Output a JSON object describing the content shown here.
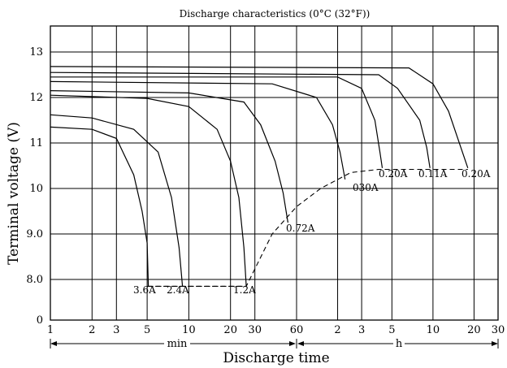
{
  "chart_data": {
    "type": "line",
    "title": "Discharge characteristics (0°C (32°F))",
    "xlabel": "Discharge time",
    "ylabel": "Terminal voltage (V)",
    "x_scale": "log (segmented: minutes 1–60, hours 1–30)",
    "x_segments": [
      {
        "label": "min",
        "start": 1,
        "end": 60,
        "ticks": [
          1,
          2,
          3,
          5,
          10,
          20,
          30,
          60
        ]
      },
      {
        "label": "h",
        "start": 1,
        "end": 30,
        "ticks": [
          2,
          3,
          5,
          10,
          20,
          30
        ]
      }
    ],
    "x_tick_labels": [
      "1",
      "2",
      "3",
      "5",
      "10",
      "20",
      "30",
      "60",
      "2",
      "3",
      "5",
      "10",
      "20",
      "30"
    ],
    "y_ticks": [
      0,
      8.0,
      9.0,
      10,
      11,
      12,
      13
    ],
    "y_tick_labels": [
      "0",
      "8.0",
      "9.0",
      "10",
      "11",
      "12",
      "13"
    ],
    "ylim": [
      7.0,
      13.6
    ],
    "y_break": "axis jumps from 0 to 8.0",
    "grid": true,
    "series": [
      {
        "name": "3.6A",
        "points": [
          [
            1,
            11.35
          ],
          [
            2,
            11.3
          ],
          [
            3,
            11.1
          ],
          [
            4,
            10.3
          ],
          [
            4.6,
            9.5
          ],
          [
            5,
            8.8
          ],
          [
            5.1,
            7.85
          ]
        ]
      },
      {
        "name": "2.4A",
        "points": [
          [
            1,
            11.62
          ],
          [
            2,
            11.55
          ],
          [
            4,
            11.3
          ],
          [
            6,
            10.8
          ],
          [
            7.5,
            9.8
          ],
          [
            8.5,
            8.7
          ],
          [
            9,
            7.85
          ]
        ]
      },
      {
        "name": "1.2A",
        "points": [
          [
            1,
            12.05
          ],
          [
            5,
            11.98
          ],
          [
            10,
            11.8
          ],
          [
            16,
            11.3
          ],
          [
            20,
            10.6
          ],
          [
            23,
            9.8
          ],
          [
            25,
            8.7
          ],
          [
            26,
            7.85
          ]
        ]
      },
      {
        "name": "0.72A",
        "points": [
          [
            1,
            12.15
          ],
          [
            10,
            12.1
          ],
          [
            25,
            11.9
          ],
          [
            33,
            11.4
          ],
          [
            42,
            10.6
          ],
          [
            48,
            9.9
          ],
          [
            52,
            9.25
          ]
        ]
      },
      {
        "name": "030A",
        "h_start": 28,
        "points": [
          [
            1,
            12.35
          ],
          [
            40,
            12.3
          ],
          [
            84,
            12.0
          ],
          [
            110,
            11.4
          ],
          [
            125,
            10.8
          ],
          [
            136,
            10.2
          ]
        ]
      },
      {
        "name": "0.20A",
        "h_start": 76,
        "points": [
          [
            1,
            12.45
          ],
          [
            120,
            12.45
          ],
          [
            180,
            12.2
          ],
          [
            225,
            11.5
          ],
          [
            245,
            10.8
          ],
          [
            255,
            10.45
          ]
        ]
      },
      {
        "name": "0.11A",
        "h_start": 180,
        "points": [
          [
            1,
            12.55
          ],
          [
            240,
            12.5
          ],
          [
            330,
            12.2
          ],
          [
            480,
            11.5
          ],
          [
            540,
            10.9
          ],
          [
            570,
            10.45
          ]
        ]
      },
      {
        "name": "0.20A",
        "h_start": 370,
        "points": [
          [
            1,
            12.68
          ],
          [
            400,
            12.65
          ],
          [
            600,
            12.3
          ],
          [
            780,
            11.7
          ],
          [
            960,
            10.9
          ],
          [
            1080,
            10.45
          ]
        ]
      }
    ],
    "end_line": {
      "points": [
        [
          5,
          7.85
        ],
        [
          26,
          7.85
        ],
        [
          40,
          9.0
        ],
        [
          60,
          9.6
        ],
        [
          90,
          10.0
        ],
        [
          150,
          10.35
        ],
        [
          240,
          10.42
        ],
        [
          1080,
          10.42
        ]
      ]
    },
    "curve_labels": [
      "3.6A",
      "2.4A",
      "1.2A",
      "0.72A",
      "030A",
      "0.20A",
      "0.11A",
      "0.20A"
    ]
  }
}
